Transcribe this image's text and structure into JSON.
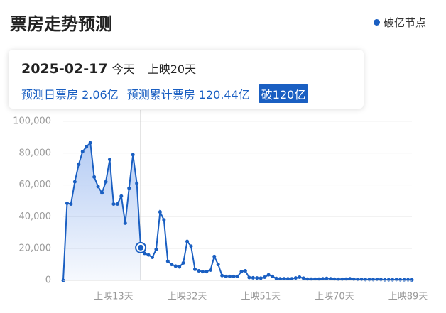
{
  "chart_data": {
    "type": "line",
    "title": "票房走势预测",
    "legend_label": "破亿节点",
    "legend_color": "#1a5fc2",
    "color": "#1a5fc2",
    "tooltip": {
      "date": "2025-02-17",
      "today": "今天",
      "day": "上映20天",
      "daily": "预测日票房 2.06亿",
      "total": "预测累计票房 120.44亿",
      "badge": "破120亿"
    },
    "selected": 20,
    "categories": [
      null,
      null,
      null,
      null,
      null,
      null,
      null,
      null,
      null,
      null,
      null,
      null,
      null,
      "上映13天",
      null,
      null,
      null,
      null,
      null,
      null,
      null,
      null,
      null,
      null,
      null,
      null,
      null,
      null,
      null,
      null,
      null,
      null,
      "上映32天",
      null,
      null,
      null,
      null,
      null,
      null,
      null,
      null,
      null,
      null,
      null,
      null,
      null,
      null,
      null,
      null,
      null,
      null,
      "上映51天",
      null,
      null,
      null,
      null,
      null,
      null,
      null,
      null,
      null,
      null,
      null,
      null,
      null,
      null,
      null,
      null,
      null,
      null,
      "上映70天",
      null,
      null,
      null,
      null,
      null,
      null,
      null,
      null,
      null,
      null,
      null,
      null,
      null,
      null,
      null,
      null,
      null,
      null,
      "上映89天",
      null
    ],
    "values": [
      0,
      48500,
      48000,
      62000,
      73000,
      81000,
      84000,
      86500,
      65000,
      59000,
      55000,
      62000,
      76000,
      48000,
      48000,
      53000,
      36000,
      58000,
      79000,
      61000,
      20600,
      17000,
      16000,
      14500,
      19500,
      43000,
      38000,
      12000,
      10000,
      9000,
      8500,
      11000,
      24500,
      21500,
      7000,
      6000,
      5500,
      5500,
      6500,
      15000,
      10000,
      3000,
      2500,
      2500,
      2500,
      2500,
      5500,
      6000,
      1800,
      1600,
      1500,
      1400,
      2000,
      3500,
      2500,
      1200,
      1000,
      1000,
      1000,
      1000,
      1500,
      2000,
      1400,
      800,
      800,
      800,
      800,
      1000,
      1200,
      1000,
      800,
      700,
      700,
      800,
      1000,
      700,
      600,
      600,
      500,
      500,
      500,
      600,
      500,
      400,
      400,
      400,
      500,
      400,
      400,
      400,
      300
    ],
    "ylim": [
      0,
      100000
    ],
    "yticks": [
      0,
      {
        "value": 20000,
        "label": "20,000"
      },
      {
        "value": 40000,
        "label": "40,000"
      },
      {
        "value": 60000,
        "label": "60,000"
      },
      {
        "value": 80000,
        "label": "80,000"
      },
      {
        "value": 100000,
        "label": "100,000"
      }
    ],
    "grid": true
  }
}
